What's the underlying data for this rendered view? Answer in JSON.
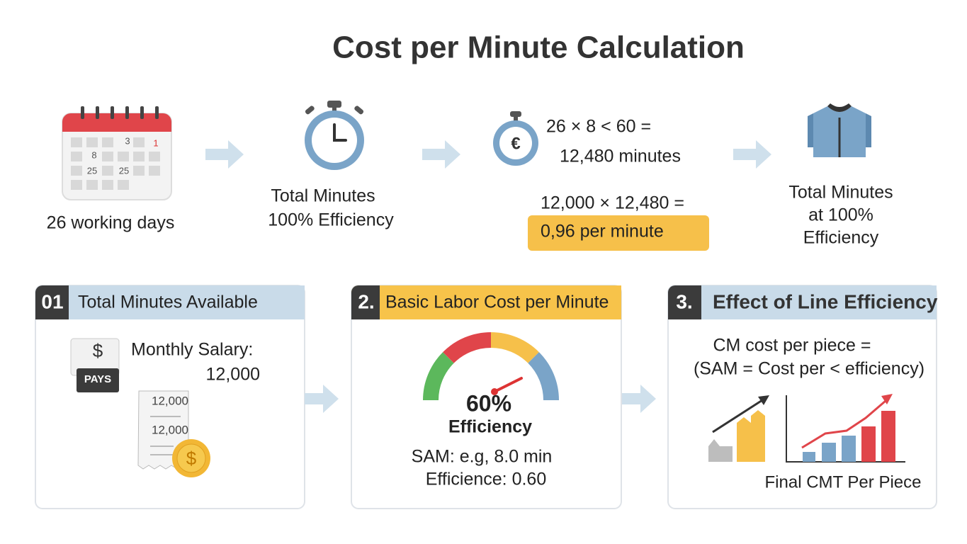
{
  "title": "Cost per Minute Calculation",
  "calendar": {
    "days": [
      "3",
      "1",
      "8",
      "25",
      "25"
    ],
    "caption": "26 working days"
  },
  "stopwatch": {
    "lines": [
      "Total Minutes",
      "100% Efficiency"
    ]
  },
  "calculation": {
    "icon": "€",
    "minutes_formula": "26 × 8 < 60 =",
    "minutes_result": "12,480 minutes",
    "cost_formula": "12,000 × 12,480 =",
    "cost_result": "0,96 per minute"
  },
  "garment": {
    "lines": [
      "Total Minutes",
      "at 100%",
      "Efficiency"
    ]
  },
  "panels": [
    {
      "number": "01",
      "title": "Total Minutes Available",
      "badge_symbol": "$",
      "badge_label": "PAYS",
      "salary_label": "Monthly Salary:",
      "salary_value": "12,000",
      "receipt_lines": [
        "12,000",
        "12,000"
      ],
      "coin_symbol": "$"
    },
    {
      "number": "2.",
      "title": "Basic Labor Cost per Minute",
      "gauge_value": "60%",
      "gauge_label": "Efficiency",
      "lines": [
        "SAM: e.g, 8.0 min",
        "Efficience: 0.60"
      ]
    },
    {
      "number": "3.",
      "title": "Effect of Line Efficiency",
      "formula_lines": [
        "CM cost per piece =",
        "(SAM = Cost per < efficiency)"
      ],
      "caption": "Final CMT Per Piece"
    }
  ]
}
